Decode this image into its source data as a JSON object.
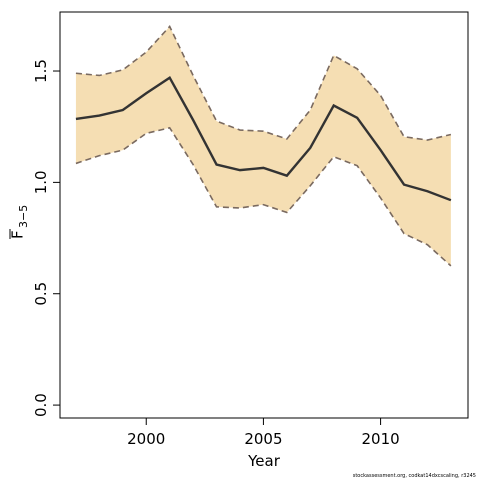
{
  "chart_data": {
    "type": "line",
    "x_label": "Year",
    "y_label": "F",
    "y_label_subscript": "3−5",
    "footnote": "stockassessment.org, codkat14dxcscaling, r3245",
    "x": [
      1997,
      1998,
      1999,
      2000,
      2001,
      2002,
      2003,
      2004,
      2005,
      2006,
      2007,
      2008,
      2009,
      2010,
      2011,
      2012,
      2013
    ],
    "values": [
      1.285,
      1.3,
      1.325,
      1.4,
      1.47,
      1.28,
      1.08,
      1.055,
      1.065,
      1.03,
      1.155,
      1.345,
      1.29,
      1.145,
      0.99,
      0.96,
      0.92
    ],
    "band": {
      "upper": [
        1.49,
        1.48,
        1.505,
        1.585,
        1.7,
        1.48,
        1.275,
        1.235,
        1.23,
        1.195,
        1.325,
        1.57,
        1.51,
        1.39,
        1.205,
        1.19,
        1.215
      ],
      "lower": [
        1.085,
        1.12,
        1.145,
        1.22,
        1.245,
        1.08,
        0.89,
        0.885,
        0.9,
        0.865,
        0.985,
        1.115,
        1.075,
        0.93,
        0.77,
        0.72,
        0.625
      ],
      "color": "#f5deb3",
      "edge_color": "#7a6a60"
    },
    "color": "#333333",
    "xlim": [
      1996.32,
      2013.73
    ],
    "ylim": [
      -0.058,
      1.765
    ],
    "xticks": [
      2000,
      2005,
      2010
    ],
    "yticks": [
      {
        "value": 0,
        "label": "0.0"
      },
      {
        "value": 0.5,
        "label": "0.5"
      },
      {
        "value": 1,
        "label": "1.0"
      },
      {
        "value": 1.5,
        "label": "1.5"
      }
    ]
  }
}
